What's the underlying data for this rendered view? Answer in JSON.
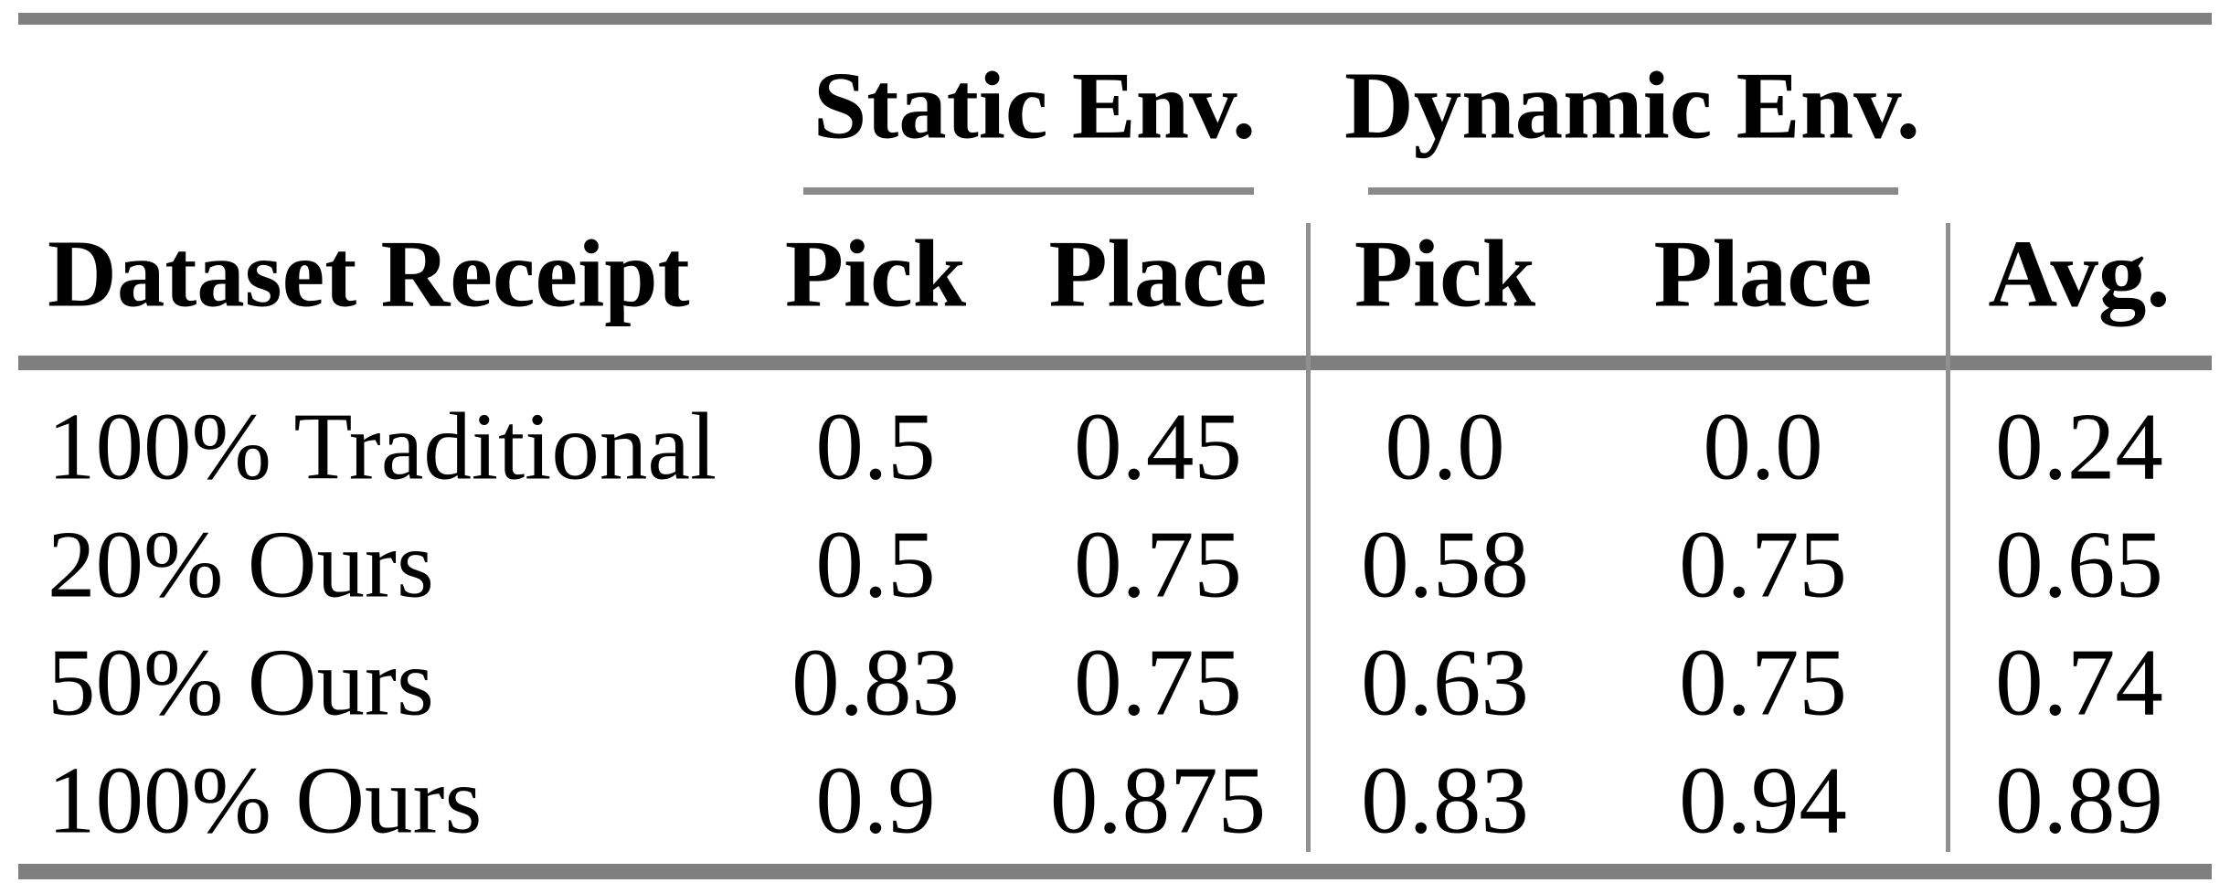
{
  "figure": {
    "description": "Academic paper results table comparing pick-and-place success rates in static and dynamic environments"
  },
  "colors": {
    "background": "#ffffff",
    "text": "#000000",
    "thick_rule_gray": "#7f7f7f",
    "cmidrule_gray": "#8a8a8a",
    "vertical_divider_gray": "#909090"
  },
  "table": {
    "column_groups": [
      {
        "label": "Static Env."
      },
      {
        "label": "Dynamic Env."
      }
    ],
    "headers": {
      "dataset": "Dataset Receipt",
      "static_pick": "Pick",
      "static_place": "Place",
      "dynamic_pick": "Pick",
      "dynamic_place": "Place",
      "avg": "Avg."
    },
    "rows": [
      {
        "label": "100% Traditional",
        "values": [
          "0.5",
          "0.45",
          "0.0",
          "0.0",
          "0.24"
        ]
      },
      {
        "label": "20% Ours",
        "values": [
          "0.5",
          "0.75",
          "0.58",
          "0.75",
          "0.65"
        ]
      },
      {
        "label": "50% Ours",
        "values": [
          "0.83",
          "0.75",
          "0.63",
          "0.75",
          "0.74"
        ]
      },
      {
        "label": "100% Ours",
        "values": [
          "0.9",
          "0.875",
          "0.83",
          "0.94",
          "0.89"
        ]
      }
    ]
  },
  "chart_data": {
    "type": "table",
    "title": "",
    "columns": [
      "Dataset Receipt",
      "Static Env. Pick",
      "Static Env. Place",
      "Dynamic Env. Pick",
      "Dynamic Env. Place",
      "Avg."
    ],
    "rows": [
      [
        "100% Traditional",
        0.5,
        0.45,
        0.0,
        0.0,
        0.24
      ],
      [
        "20% Ours",
        0.5,
        0.75,
        0.58,
        0.75,
        0.65
      ],
      [
        "50% Ours",
        0.83,
        0.75,
        0.63,
        0.75,
        0.74
      ],
      [
        "100% Ours",
        0.9,
        0.875,
        0.83,
        0.94,
        0.89
      ]
    ]
  }
}
